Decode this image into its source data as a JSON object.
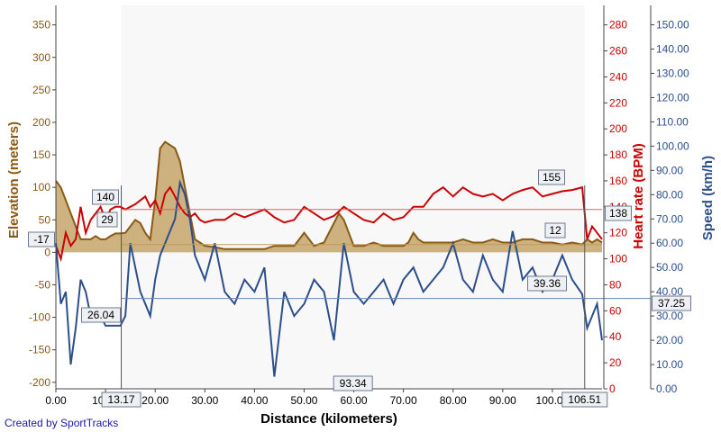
{
  "chart_data": {
    "type": "line",
    "xlabel": "Distance (kilometers)",
    "xlim": [
      0,
      110
    ],
    "x_ticks": [
      "0.00",
      "10.00",
      "20.00",
      "30.00",
      "40.00",
      "50.00",
      "60.00",
      "70.00",
      "80.00",
      "90.00",
      "100.00"
    ],
    "grid": false,
    "credit": "Created by SportTracks",
    "axes": {
      "elevation": {
        "label": "Elevation (meters)",
        "color": "#8a5a14",
        "range": [
          -210,
          380
        ],
        "ticks": [
          "350",
          "300",
          "250",
          "200",
          "150",
          "100",
          "50",
          "0",
          "-50",
          "-100",
          "-150",
          "-200"
        ]
      },
      "heart_rate": {
        "label": "Heart rate (BPM)",
        "color": "#cc0000",
        "range": [
          0,
          295
        ],
        "ticks": [
          "280",
          "260",
          "240",
          "220",
          "200",
          "180",
          "160",
          "140",
          "120",
          "100",
          "80",
          "60",
          "40",
          "20",
          "0"
        ]
      },
      "speed": {
        "label": "Speed (km/h)",
        "color": "#2c4f8c",
        "range": [
          0,
          158
        ],
        "ticks": [
          "150.00",
          "140.00",
          "130.00",
          "120.00",
          "110.00",
          "100.00",
          "90.00",
          "80.00",
          "70.00",
          "60.00",
          "50.00",
          "40.00",
          "30.00",
          "20.00",
          "10.00",
          "0.00"
        ]
      }
    },
    "selection": {
      "start": "13.17",
      "end": "106.51",
      "span": "93.34"
    },
    "markers": {
      "hr_start": "140",
      "hr_end": "155",
      "hr_avg": "138",
      "elev_start": "29",
      "elev_end": "12",
      "elev_min": "-17",
      "speed_start": "26.04",
      "speed_end": "39.36",
      "speed_avg": "37.25"
    },
    "series": [
      {
        "name": "Elevation",
        "axis": "elevation",
        "color": "#8a5a14",
        "fill": "#c6a46a",
        "x": [
          0,
          1,
          2,
          3,
          4,
          5,
          6,
          7,
          8,
          9,
          10,
          11,
          12,
          13,
          14,
          15,
          16,
          17,
          18,
          19,
          20,
          21,
          22,
          23,
          24,
          25,
          26,
          27,
          28,
          29,
          30,
          32,
          34,
          36,
          38,
          40,
          42,
          44,
          46,
          48,
          50,
          52,
          54,
          56,
          57,
          58,
          59,
          60,
          62,
          64,
          66,
          68,
          70,
          71,
          72,
          73,
          74,
          76,
          78,
          80,
          82,
          84,
          86,
          88,
          90,
          92,
          94,
          96,
          98,
          100,
          102,
          104,
          106,
          107,
          108,
          109,
          110
        ],
        "y": [
          110,
          100,
          80,
          60,
          40,
          20,
          20,
          20,
          25,
          20,
          20,
          25,
          29,
          29,
          30,
          40,
          50,
          45,
          30,
          20,
          80,
          160,
          170,
          165,
          160,
          140,
          100,
          60,
          20,
          15,
          10,
          8,
          5,
          5,
          5,
          5,
          5,
          10,
          10,
          10,
          30,
          10,
          15,
          45,
          60,
          50,
          30,
          10,
          10,
          15,
          10,
          10,
          10,
          15,
          30,
          20,
          15,
          15,
          15,
          15,
          20,
          15,
          15,
          20,
          15,
          15,
          20,
          20,
          15,
          15,
          12,
          15,
          12,
          20,
          15,
          20,
          15
        ]
      },
      {
        "name": "Heart rate",
        "axis": "heart_rate",
        "color": "#cc0000",
        "x": [
          0,
          1,
          2,
          3,
          4,
          5,
          6,
          7,
          8,
          9,
          10,
          11,
          12,
          13,
          14,
          15,
          16,
          17,
          18,
          19,
          20,
          21,
          22,
          23,
          24,
          25,
          26,
          27,
          28,
          29,
          30,
          32,
          34,
          36,
          38,
          40,
          42,
          44,
          46,
          48,
          50,
          52,
          54,
          56,
          58,
          60,
          62,
          64,
          66,
          68,
          70,
          72,
          74,
          76,
          78,
          80,
          82,
          84,
          86,
          88,
          90,
          92,
          94,
          96,
          98,
          100,
          102,
          104,
          106,
          107,
          108,
          109,
          110
        ],
        "y": [
          110,
          100,
          120,
          110,
          115,
          140,
          120,
          130,
          135,
          140,
          130,
          138,
          140,
          140,
          138,
          140,
          142,
          145,
          148,
          140,
          145,
          135,
          150,
          155,
          148,
          140,
          135,
          132,
          135,
          130,
          128,
          130,
          130,
          135,
          132,
          135,
          138,
          132,
          128,
          130,
          140,
          135,
          130,
          133,
          140,
          135,
          130,
          128,
          135,
          130,
          132,
          140,
          140,
          150,
          155,
          148,
          155,
          150,
          148,
          150,
          145,
          150,
          153,
          155,
          148,
          150,
          152,
          153,
          155,
          115,
          125,
          120,
          115
        ]
      },
      {
        "name": "Speed",
        "axis": "speed",
        "color": "#2c4f8c",
        "x": [
          0,
          1,
          2,
          3,
          4,
          5,
          6,
          7,
          8,
          9,
          10,
          11,
          12,
          13,
          14,
          15,
          16,
          17,
          18,
          19,
          20,
          21,
          22,
          23,
          24,
          25,
          26,
          27,
          28,
          29,
          30,
          32,
          34,
          36,
          38,
          40,
          42,
          44,
          46,
          48,
          50,
          52,
          54,
          56,
          58,
          60,
          62,
          64,
          66,
          68,
          70,
          72,
          74,
          76,
          78,
          80,
          82,
          84,
          86,
          88,
          90,
          92,
          94,
          96,
          98,
          100,
          102,
          104,
          106,
          107,
          108,
          109,
          110
        ],
        "y": [
          60,
          35,
          40,
          10,
          25,
          45,
          40,
          30,
          28,
          30,
          26,
          26,
          26,
          26,
          30,
          60,
          50,
          40,
          35,
          30,
          45,
          55,
          60,
          65,
          70,
          85,
          80,
          70,
          55,
          50,
          45,
          60,
          40,
          35,
          45,
          40,
          50,
          5,
          40,
          30,
          35,
          45,
          40,
          20,
          60,
          40,
          35,
          40,
          45,
          35,
          45,
          50,
          40,
          45,
          50,
          60,
          45,
          40,
          55,
          45,
          40,
          65,
          45,
          50,
          40,
          45,
          55,
          45,
          39,
          25,
          30,
          35,
          20
        ]
      }
    ]
  }
}
